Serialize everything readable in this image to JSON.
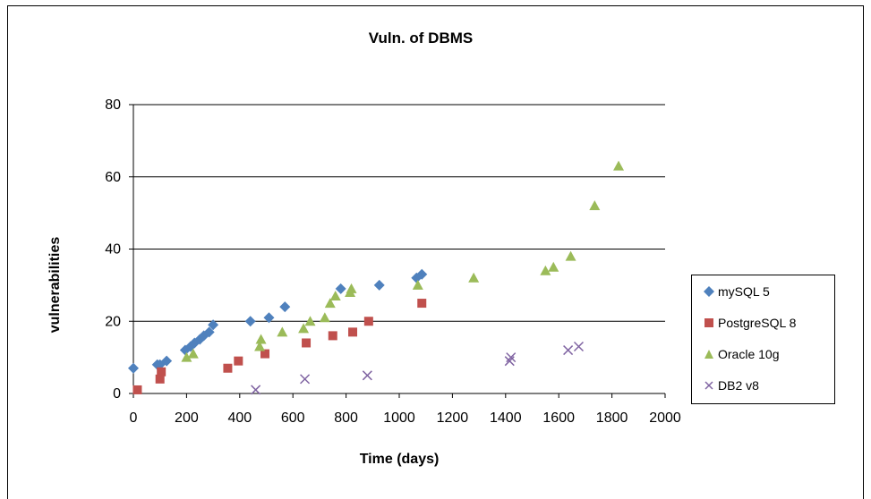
{
  "chart_data": {
    "type": "scatter",
    "title": "Vuln. of DBMS",
    "xlabel": "Time (days)",
    "ylabel": "vulnerabilities",
    "xlim": [
      0,
      2000
    ],
    "ylim": [
      0,
      80
    ],
    "xticks": [
      0,
      200,
      400,
      600,
      800,
      1000,
      1200,
      1400,
      1600,
      1800,
      2000
    ],
    "yticks": [
      0,
      20,
      40,
      60,
      80
    ],
    "grid": "horizontal",
    "legend_position": "right",
    "series": [
      {
        "name": "mySQL 5",
        "marker": "diamond",
        "color": "#4F81BD",
        "points": [
          [
            0,
            7
          ],
          [
            90,
            8
          ],
          [
            100,
            8
          ],
          [
            125,
            9
          ],
          [
            195,
            12
          ],
          [
            215,
            13
          ],
          [
            230,
            14
          ],
          [
            250,
            15
          ],
          [
            265,
            16
          ],
          [
            285,
            17
          ],
          [
            300,
            19
          ],
          [
            440,
            20
          ],
          [
            510,
            21
          ],
          [
            570,
            24
          ],
          [
            780,
            29
          ],
          [
            925,
            30
          ],
          [
            1065,
            32
          ],
          [
            1085,
            33
          ]
        ]
      },
      {
        "name": "PostgreSQL 8",
        "marker": "square",
        "color": "#C0504D",
        "points": [
          [
            15,
            1
          ],
          [
            100,
            4
          ],
          [
            105,
            6
          ],
          [
            355,
            7
          ],
          [
            395,
            9
          ],
          [
            495,
            11
          ],
          [
            650,
            14
          ],
          [
            750,
            16
          ],
          [
            825,
            17
          ],
          [
            885,
            20
          ],
          [
            1085,
            25
          ]
        ]
      },
      {
        "name": "Oracle 10g",
        "marker": "triangle",
        "color": "#9BBB59",
        "points": [
          [
            200,
            10
          ],
          [
            225,
            11
          ],
          [
            475,
            13
          ],
          [
            480,
            15
          ],
          [
            560,
            17
          ],
          [
            640,
            18
          ],
          [
            665,
            20
          ],
          [
            720,
            21
          ],
          [
            740,
            25
          ],
          [
            760,
            27
          ],
          [
            815,
            28
          ],
          [
            820,
            29
          ],
          [
            1070,
            30
          ],
          [
            1280,
            32
          ],
          [
            1550,
            34
          ],
          [
            1580,
            35
          ],
          [
            1645,
            38
          ],
          [
            1735,
            52
          ],
          [
            1825,
            63
          ]
        ]
      },
      {
        "name": "DB2 v8",
        "marker": "x",
        "color": "#8064A2",
        "points": [
          [
            460,
            1
          ],
          [
            645,
            4
          ],
          [
            880,
            5
          ],
          [
            1415,
            9
          ],
          [
            1420,
            10
          ],
          [
            1635,
            12
          ],
          [
            1675,
            13
          ]
        ]
      }
    ]
  }
}
